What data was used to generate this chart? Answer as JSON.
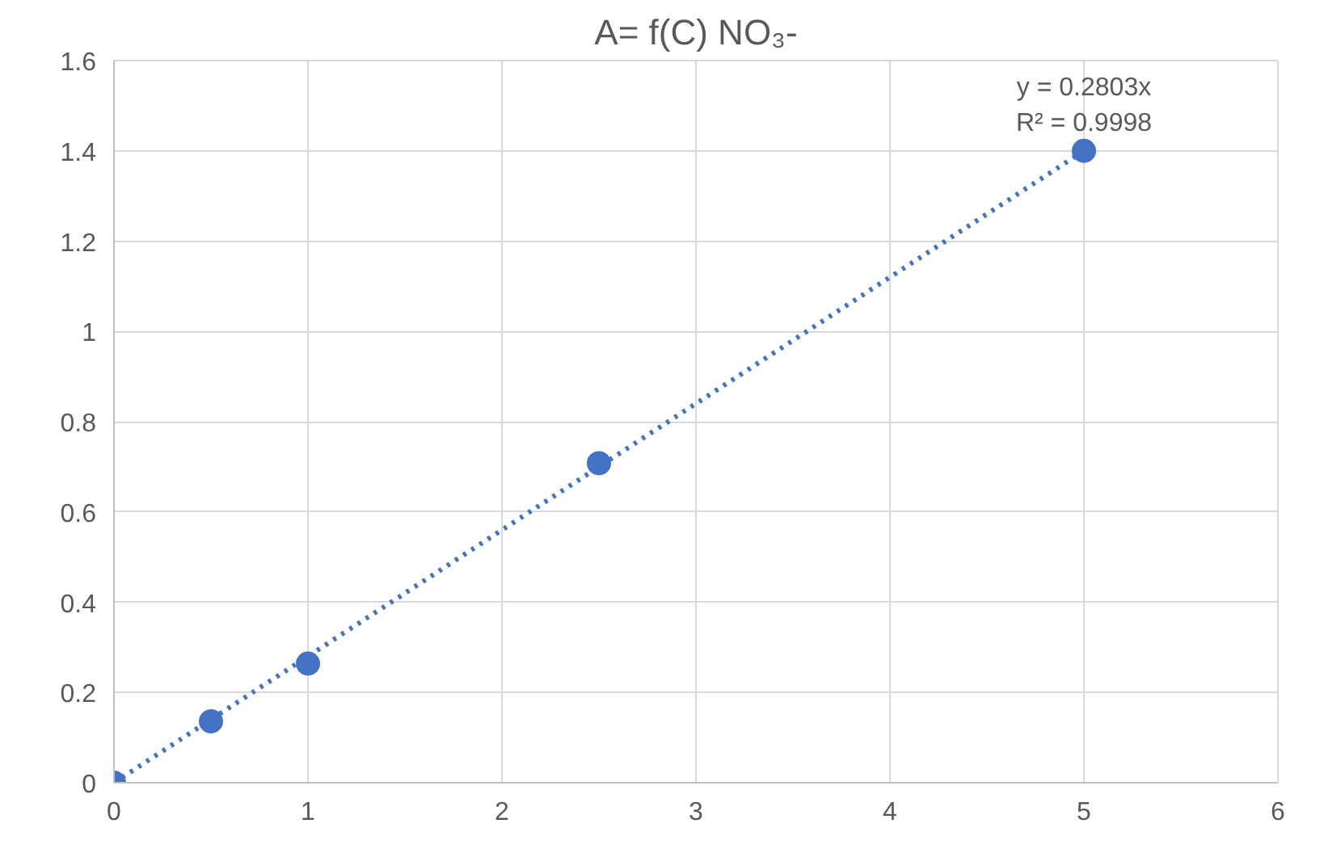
{
  "chart_data": {
    "type": "scatter",
    "title": "A= f(C) NO₃-",
    "x": [
      0,
      0.5,
      1,
      2.5,
      5
    ],
    "series": [
      {
        "color": "#4472c4",
        "values": [
          0,
          0.136,
          0.264,
          0.708,
          1.4
        ],
        "marker": "circle"
      },
      {
        "type": "line",
        "color": "#4472c4",
        "x": [
          0,
          5
        ],
        "values": [
          0,
          1.4
        ],
        "line_style": "dotted",
        "marker": "none"
      }
    ],
    "annotations": [
      "y = 0.2803x",
      "R² = 0.9998"
    ],
    "xlim": [
      0,
      6
    ],
    "xticks": [
      0,
      1,
      2,
      3,
      4,
      5,
      6
    ],
    "ylim": [
      0,
      1.6
    ],
    "yticks": [
      0,
      0.2,
      0.4,
      0.6,
      0.8,
      1,
      1.2,
      1.4,
      1.6
    ],
    "grid": true
  }
}
